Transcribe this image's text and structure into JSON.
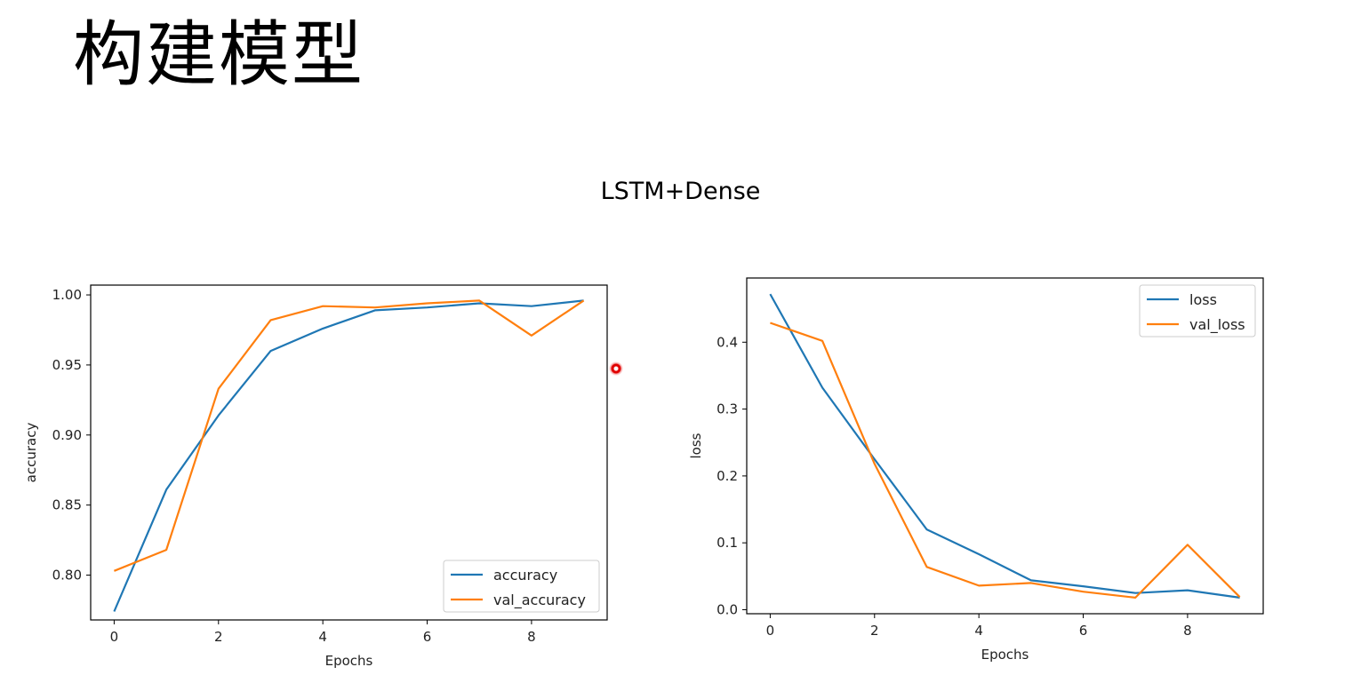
{
  "slide": {
    "title": "构建模型",
    "subtitle": "LSTM+Dense"
  },
  "colors": {
    "series1": "#1f77b4",
    "series2": "#ff7f0e"
  },
  "chart_data": [
    {
      "type": "line",
      "xlabel": "Epochs",
      "ylabel": "accuracy",
      "x": [
        0,
        1,
        2,
        3,
        4,
        5,
        6,
        7,
        8,
        9
      ],
      "xlim": [
        -0.45,
        9.45
      ],
      "ylim": [
        0.768,
        1.007
      ],
      "xticks": [
        "0",
        "2",
        "4",
        "6",
        "8"
      ],
      "yticks": [
        "0.80",
        "0.85",
        "0.90",
        "0.95",
        "1.00"
      ],
      "legend_position": "bottom-right",
      "series": [
        {
          "name": "accuracy",
          "values": [
            0.774,
            0.861,
            0.914,
            0.96,
            0.976,
            0.989,
            0.991,
            0.994,
            0.992,
            0.996
          ]
        },
        {
          "name": "val_accuracy",
          "values": [
            0.803,
            0.818,
            0.933,
            0.982,
            0.992,
            0.991,
            0.994,
            0.996,
            0.971,
            0.996
          ]
        }
      ]
    },
    {
      "type": "line",
      "xlabel": "Epochs",
      "ylabel": "loss",
      "x": [
        0,
        1,
        2,
        3,
        4,
        5,
        6,
        7,
        8,
        9
      ],
      "xlim": [
        -0.45,
        9.45
      ],
      "ylim": [
        -0.006,
        0.496
      ],
      "xticks": [
        "0",
        "2",
        "4",
        "6",
        "8"
      ],
      "yticks": [
        "0.0",
        "0.1",
        "0.2",
        "0.3",
        "0.4"
      ],
      "legend_position": "top-right",
      "series": [
        {
          "name": "loss",
          "values": [
            0.472,
            0.332,
            0.225,
            0.12,
            0.083,
            0.044,
            0.035,
            0.025,
            0.029,
            0.018
          ]
        },
        {
          "name": "val_loss",
          "values": [
            0.429,
            0.402,
            0.218,
            0.064,
            0.036,
            0.04,
            0.027,
            0.018,
            0.097,
            0.019
          ]
        }
      ]
    }
  ]
}
